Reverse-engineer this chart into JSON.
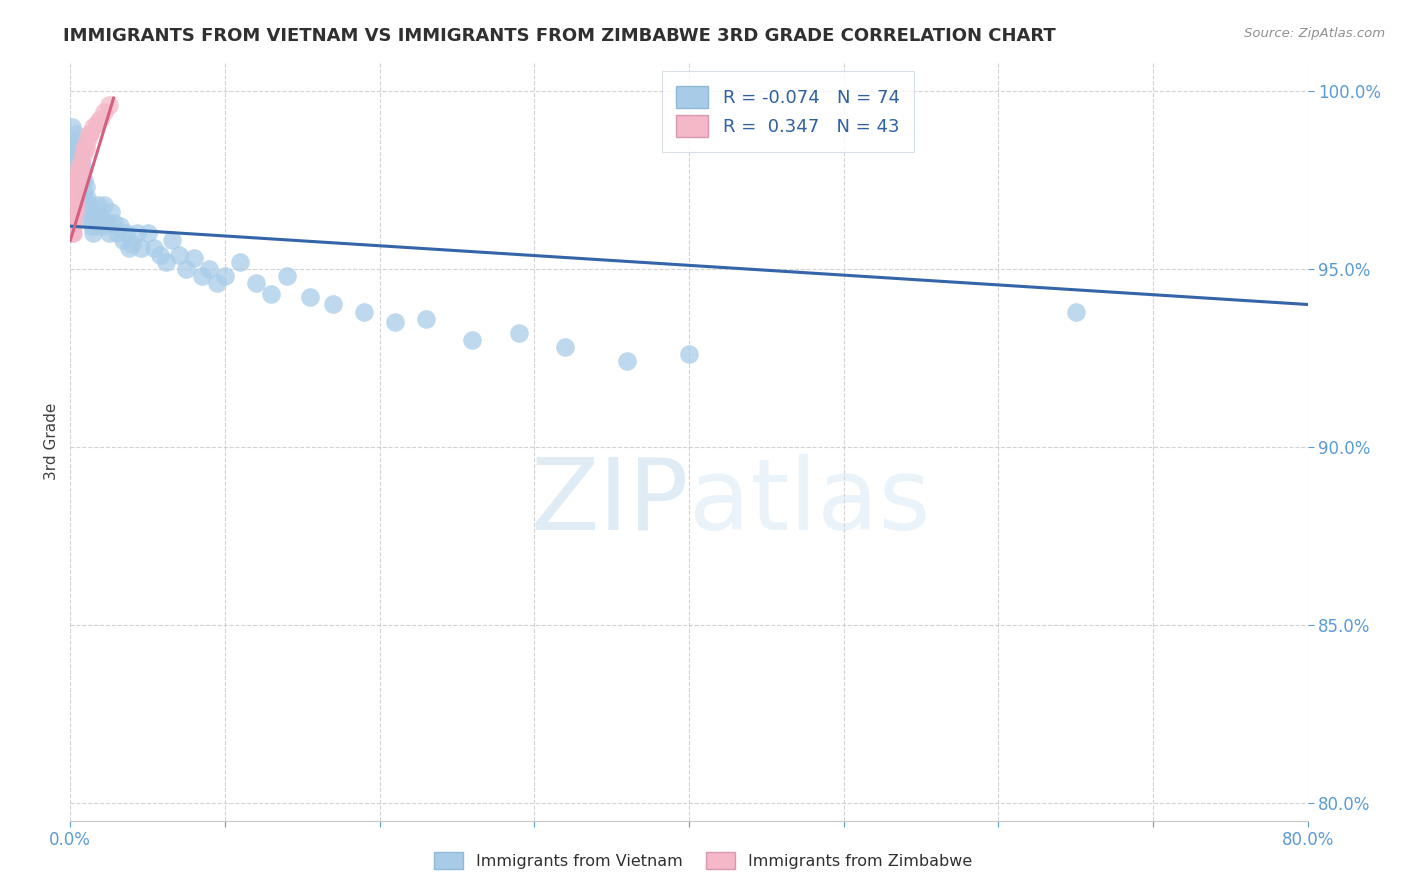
{
  "title": "IMMIGRANTS FROM VIETNAM VS IMMIGRANTS FROM ZIMBABWE 3RD GRADE CORRELATION CHART",
  "source": "Source: ZipAtlas.com",
  "ylabel": "3rd Grade",
  "xlim": [
    0.0,
    0.8
  ],
  "ylim": [
    0.795,
    1.008
  ],
  "xticks": [
    0.0,
    0.1,
    0.2,
    0.3,
    0.4,
    0.5,
    0.6,
    0.7,
    0.8
  ],
  "xticklabels": [
    "0.0%",
    "",
    "",
    "",
    "",
    "",
    "",
    "",
    "80.0%"
  ],
  "yticks": [
    0.8,
    0.85,
    0.9,
    0.95,
    1.0
  ],
  "yticklabels": [
    "80.0%",
    "85.0%",
    "90.0%",
    "95.0%",
    "100.0%"
  ],
  "vietnam_color": "#a8cce8",
  "zimbabwe_color": "#f4b8c8",
  "line_blue": "#3465a8",
  "line_pink": "#d46080",
  "legend_r_vietnam": "-0.074",
  "legend_n_vietnam": "74",
  "legend_r_zimbabwe": "0.347",
  "legend_n_zimbabwe": "43",
  "watermark": "ZIPatlas",
  "vietnam_x": [
    0.001,
    0.002,
    0.002,
    0.003,
    0.003,
    0.003,
    0.004,
    0.004,
    0.004,
    0.005,
    0.005,
    0.005,
    0.006,
    0.006,
    0.007,
    0.007,
    0.008,
    0.008,
    0.009,
    0.009,
    0.01,
    0.01,
    0.011,
    0.011,
    0.012,
    0.013,
    0.014,
    0.015,
    0.016,
    0.017,
    0.018,
    0.019,
    0.02,
    0.021,
    0.022,
    0.024,
    0.025,
    0.026,
    0.028,
    0.03,
    0.032,
    0.034,
    0.036,
    0.038,
    0.04,
    0.043,
    0.046,
    0.05,
    0.054,
    0.058,
    0.062,
    0.066,
    0.07,
    0.075,
    0.08,
    0.085,
    0.09,
    0.095,
    0.1,
    0.11,
    0.12,
    0.13,
    0.14,
    0.155,
    0.17,
    0.19,
    0.21,
    0.23,
    0.26,
    0.29,
    0.32,
    0.36,
    0.4,
    0.65
  ],
  "vietnam_y": [
    0.99,
    0.985,
    0.982,
    0.988,
    0.984,
    0.979,
    0.986,
    0.982,
    0.978,
    0.984,
    0.98,
    0.975,
    0.982,
    0.978,
    0.98,
    0.975,
    0.978,
    0.972,
    0.975,
    0.97,
    0.973,
    0.967,
    0.97,
    0.964,
    0.968,
    0.965,
    0.962,
    0.96,
    0.965,
    0.962,
    0.968,
    0.963,
    0.965,
    0.962,
    0.968,
    0.963,
    0.96,
    0.966,
    0.963,
    0.96,
    0.962,
    0.958,
    0.96,
    0.956,
    0.957,
    0.96,
    0.956,
    0.96,
    0.956,
    0.954,
    0.952,
    0.958,
    0.954,
    0.95,
    0.953,
    0.948,
    0.95,
    0.946,
    0.948,
    0.952,
    0.946,
    0.943,
    0.948,
    0.942,
    0.94,
    0.938,
    0.935,
    0.936,
    0.93,
    0.932,
    0.928,
    0.924,
    0.926,
    0.938
  ],
  "zimbabwe_x": [
    0.001,
    0.001,
    0.001,
    0.001,
    0.001,
    0.001,
    0.001,
    0.001,
    0.002,
    0.002,
    0.002,
    0.002,
    0.002,
    0.002,
    0.002,
    0.002,
    0.003,
    0.003,
    0.003,
    0.003,
    0.003,
    0.004,
    0.004,
    0.004,
    0.004,
    0.005,
    0.005,
    0.005,
    0.006,
    0.006,
    0.007,
    0.007,
    0.008,
    0.009,
    0.01,
    0.011,
    0.012,
    0.013,
    0.015,
    0.017,
    0.019,
    0.022,
    0.025
  ],
  "zimbabwe_y": [
    0.975,
    0.973,
    0.971,
    0.969,
    0.967,
    0.965,
    0.963,
    0.96,
    0.974,
    0.972,
    0.97,
    0.968,
    0.966,
    0.964,
    0.962,
    0.96,
    0.974,
    0.972,
    0.97,
    0.968,
    0.966,
    0.975,
    0.973,
    0.971,
    0.968,
    0.978,
    0.976,
    0.974,
    0.978,
    0.976,
    0.98,
    0.978,
    0.982,
    0.984,
    0.984,
    0.986,
    0.988,
    0.988,
    0.99,
    0.991,
    0.992,
    0.994,
    0.996
  ],
  "blue_line_x": [
    0.0,
    0.8
  ],
  "blue_line_y": [
    0.962,
    0.94
  ],
  "pink_line_x": [
    0.0,
    0.028
  ],
  "pink_line_y": [
    0.958,
    0.998
  ]
}
